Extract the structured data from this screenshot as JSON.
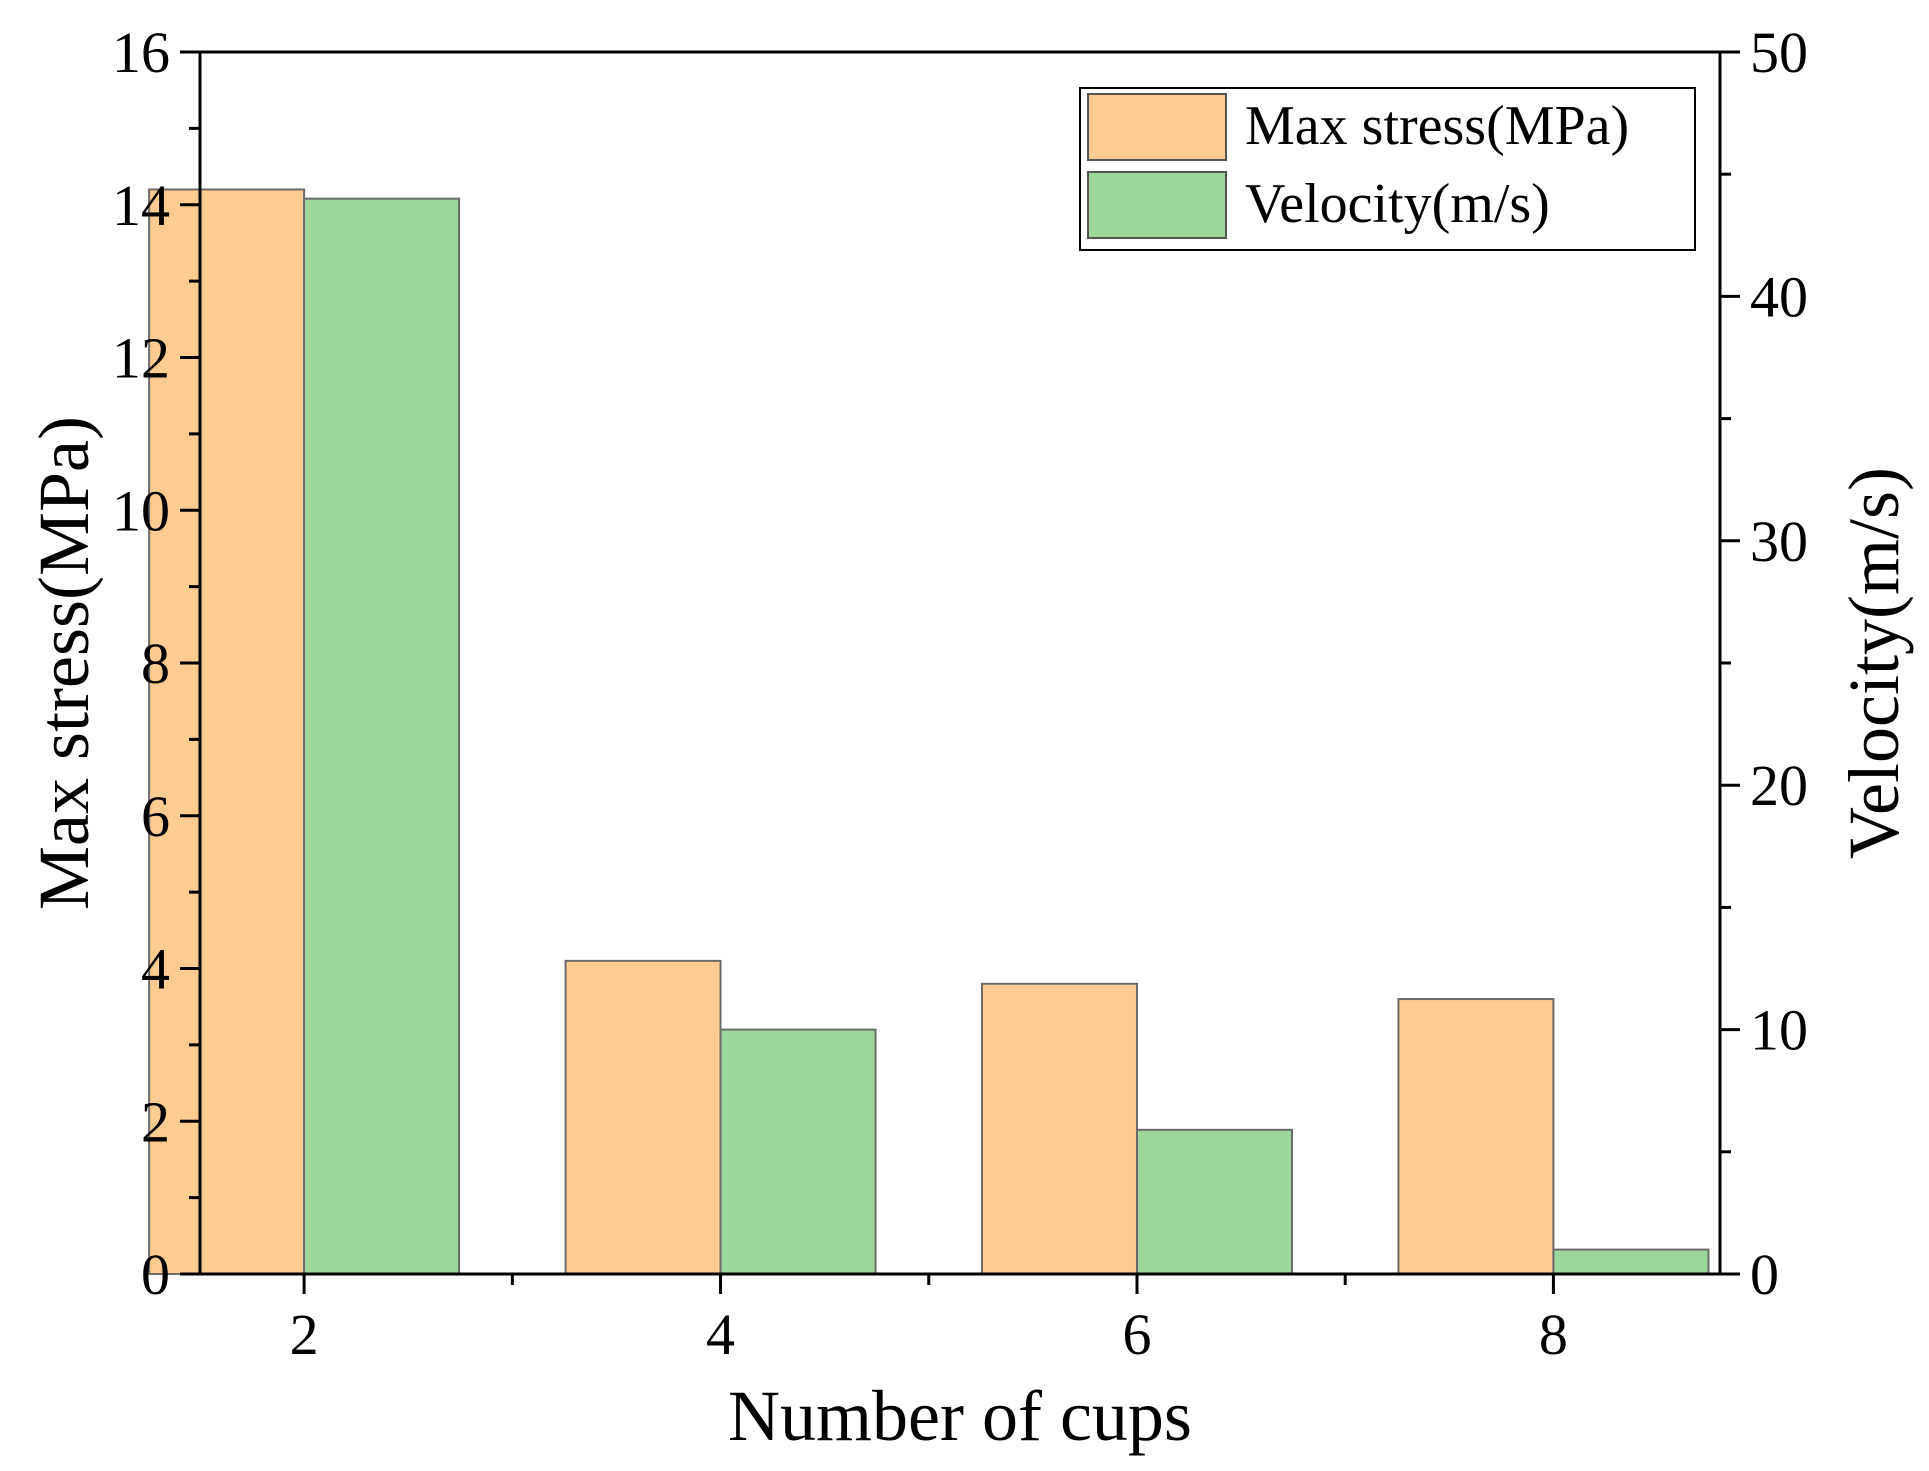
{
  "chart_data": {
    "type": "bar",
    "categories": [
      "2",
      "4",
      "6",
      "8"
    ],
    "xlabel": "Number of cups",
    "ylabel_left": "Max stress(MPa)",
    "ylabel_right": "Velocity(m/s)",
    "ylim_left": [
      0,
      16
    ],
    "ylim_right": [
      0,
      50
    ],
    "yticks_left": [
      "0",
      "2",
      "4",
      "6",
      "8",
      "10",
      "12",
      "14",
      "16"
    ],
    "yticks_right": [
      "0",
      "10",
      "20",
      "30",
      "40",
      "50"
    ],
    "legend_position": "top-right",
    "series": [
      {
        "name": "Max stress(MPa)",
        "axis": "left",
        "color": "#FECB90",
        "values": [
          14.2,
          4.1,
          3.8,
          3.6
        ]
      },
      {
        "name": "Velocity(m/s)",
        "axis": "right",
        "color": "#9DD69B",
        "values": [
          44.0,
          10.0,
          5.9,
          1.0
        ]
      }
    ]
  }
}
